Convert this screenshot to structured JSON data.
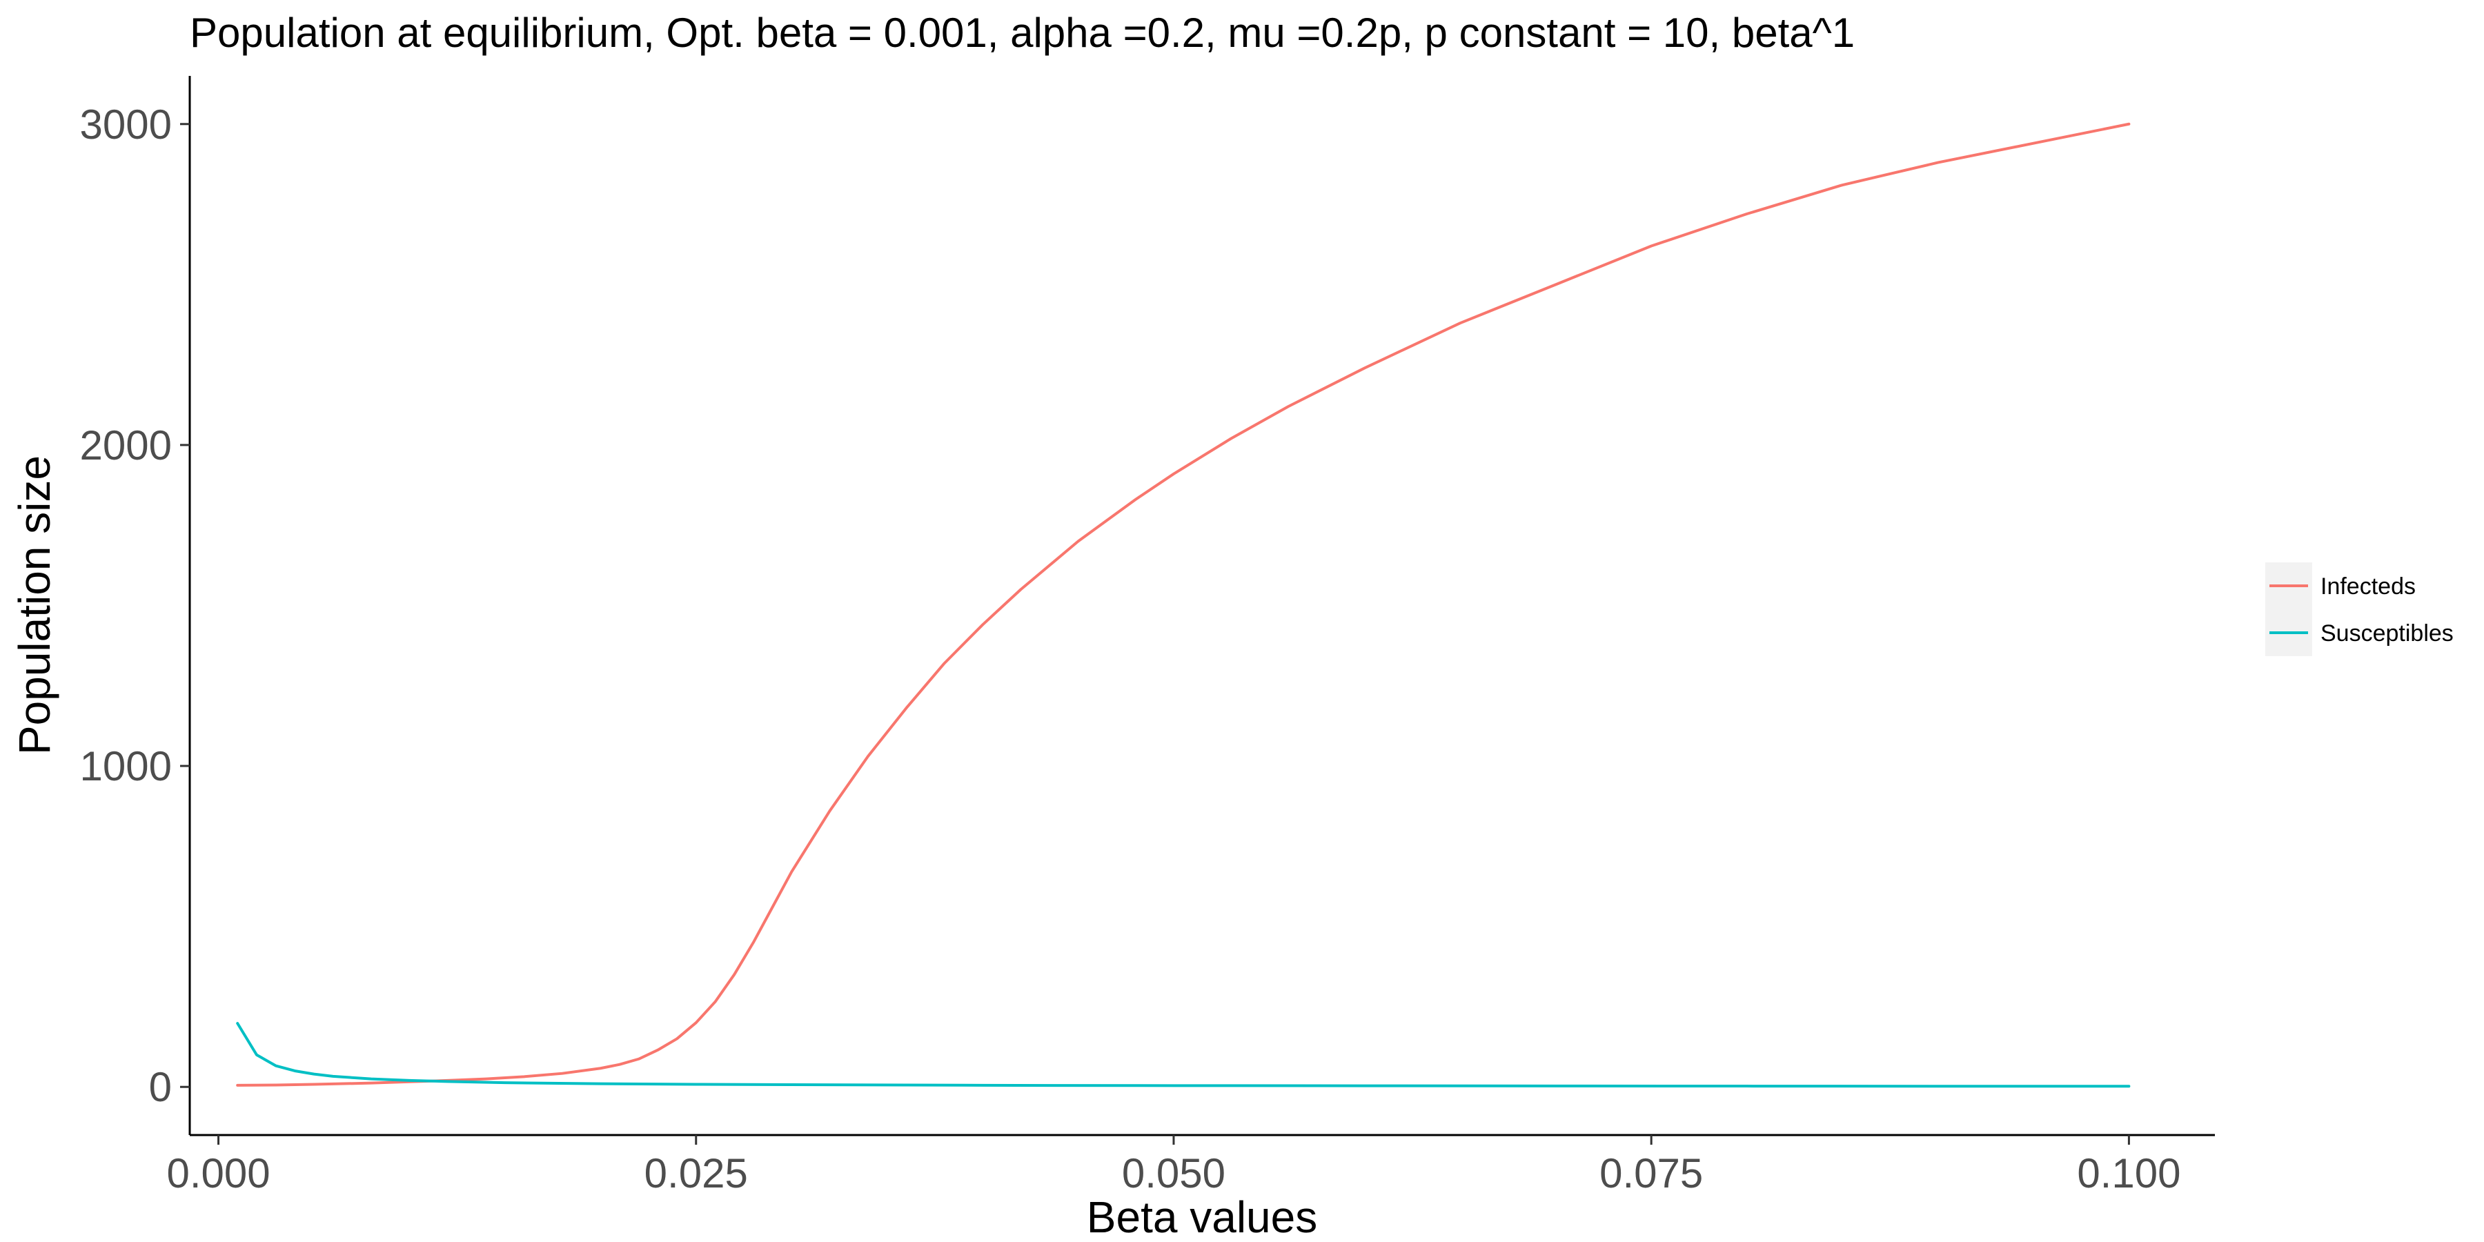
{
  "chart_data": {
    "type": "line",
    "title": "Population at equilibrium, Opt. beta = 0.001, alpha =0.2, mu =0.2p, p constant = 10, beta^1",
    "xlabel": "Beta values",
    "ylabel": "Population size",
    "xlim": [
      -0.0015,
      0.1045
    ],
    "ylim": [
      -150,
      3150
    ],
    "xticks": [
      0.0,
      0.025,
      0.05,
      0.075,
      0.1
    ],
    "xtick_labels": [
      "0.000",
      "0.025",
      "0.050",
      "0.075",
      "0.100"
    ],
    "yticks": [
      0,
      1000,
      2000,
      3000
    ],
    "ytick_labels": [
      "0",
      "1000",
      "2000",
      "3000"
    ],
    "grid": false,
    "legend_position": "right",
    "series": [
      {
        "name": "Infecteds",
        "color": "#F8766D",
        "x": [
          0.001,
          0.003,
          0.005,
          0.008,
          0.01,
          0.012,
          0.014,
          0.016,
          0.018,
          0.02,
          0.021,
          0.022,
          0.023,
          0.024,
          0.025,
          0.026,
          0.027,
          0.028,
          0.029,
          0.03,
          0.032,
          0.034,
          0.036,
          0.038,
          0.04,
          0.042,
          0.045,
          0.048,
          0.05,
          0.053,
          0.056,
          0.06,
          0.065,
          0.07,
          0.075,
          0.08,
          0.085,
          0.09,
          0.095,
          0.1
        ],
        "y": [
          5,
          6,
          8,
          12,
          16,
          20,
          25,
          32,
          42,
          58,
          70,
          87,
          115,
          150,
          200,
          265,
          350,
          450,
          560,
          670,
          860,
          1030,
          1180,
          1320,
          1440,
          1550,
          1700,
          1830,
          1910,
          2020,
          2120,
          2240,
          2380,
          2500,
          2620,
          2720,
          2810,
          2880,
          2940,
          3000
        ]
      },
      {
        "name": "Susceptibles",
        "color": "#00BFC4",
        "x": [
          0.001,
          0.002,
          0.003,
          0.004,
          0.005,
          0.006,
          0.008,
          0.01,
          0.012,
          0.015,
          0.02,
          0.025,
          0.03,
          0.04,
          0.05,
          0.06,
          0.07,
          0.08,
          0.09,
          0.1
        ],
        "y": [
          198,
          100,
          66,
          50,
          40,
          33,
          25,
          20,
          17,
          13,
          10,
          8,
          7,
          5,
          4,
          3.5,
          3,
          2.5,
          2.2,
          2
        ]
      }
    ]
  }
}
